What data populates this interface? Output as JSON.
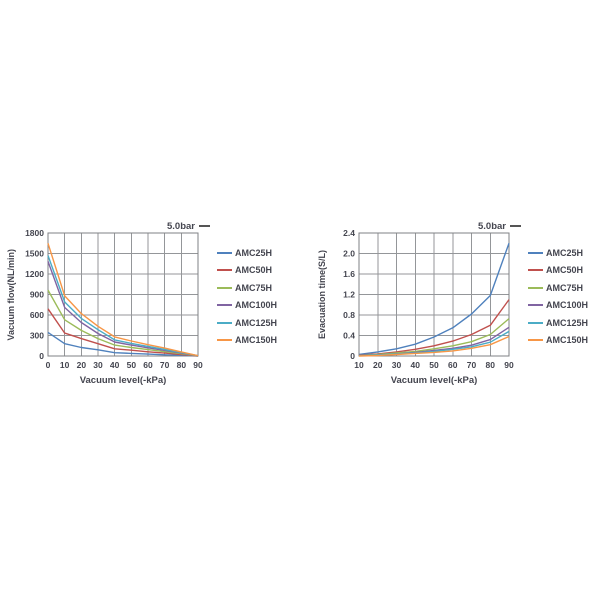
{
  "page": {
    "background": "#ffffff"
  },
  "theme": {
    "text_color": "#44454f",
    "grid_color": "#949699",
    "axis_color": "#7f8184",
    "title_dash_color": "#2b2b2b"
  },
  "chart_data": [
    {
      "type": "line",
      "title": "5.0bar",
      "xlabel": "Vacuum level(-kPa)",
      "ylabel": "Vacuum flow(NL/min)",
      "xlim": [
        0,
        90
      ],
      "ylim": [
        0,
        1800
      ],
      "grid": true,
      "legend_position": "right",
      "xticks": [
        0,
        10,
        20,
        30,
        40,
        50,
        60,
        70,
        80,
        90
      ],
      "yticks": [
        0,
        300,
        600,
        900,
        1200,
        1500,
        1800
      ],
      "xtick_labels": [
        "0",
        "10",
        "20",
        "30",
        "40",
        "50",
        "60",
        "70",
        "80",
        "90"
      ],
      "ytick_labels": [
        "0",
        "300",
        "600",
        "900",
        "1200",
        "1500",
        "1800"
      ],
      "x": [
        0,
        10,
        20,
        30,
        40,
        50,
        60,
        70,
        80,
        90
      ],
      "series": [
        {
          "name": "AMC25H",
          "color": "#4F81BD",
          "values": [
            345,
            180,
            125,
            90,
            48,
            38,
            28,
            18,
            10,
            0
          ]
        },
        {
          "name": "AMC50H",
          "color": "#C0504D",
          "values": [
            690,
            335,
            255,
            180,
            105,
            85,
            62,
            42,
            22,
            0
          ]
        },
        {
          "name": "AMC75H",
          "color": "#9BBB59",
          "values": [
            965,
            530,
            375,
            255,
            160,
            125,
            93,
            63,
            33,
            2
          ]
        },
        {
          "name": "AMC100H",
          "color": "#8064A2",
          "values": [
            1385,
            710,
            490,
            330,
            205,
            160,
            120,
            82,
            43,
            3
          ]
        },
        {
          "name": "AMC125H",
          "color": "#4BACC6",
          "values": [
            1470,
            790,
            550,
            385,
            235,
            185,
            140,
            95,
            50,
            4
          ]
        },
        {
          "name": "AMC150H",
          "color": "#F79646",
          "values": [
            1650,
            880,
            620,
            435,
            280,
            220,
            165,
            115,
            60,
            5
          ]
        }
      ]
    },
    {
      "type": "line",
      "title": "5.0bar",
      "xlabel": "Vacuum level(-kPa)",
      "ylabel": "Evacuation time(S/L)",
      "xlim": [
        10,
        90
      ],
      "ylim": [
        0,
        2.4
      ],
      "grid": true,
      "legend_position": "right",
      "xticks": [
        10,
        20,
        30,
        40,
        50,
        60,
        70,
        80,
        90
      ],
      "yticks": [
        0,
        0.4,
        0.8,
        1.2,
        1.6,
        2.0,
        2.4
      ],
      "xtick_labels": [
        "10",
        "20",
        "30",
        "40",
        "50",
        "60",
        "70",
        "80",
        "90"
      ],
      "ytick_labels": [
        "0",
        "0.4",
        "0.8",
        "1.2",
        "1.6",
        "2.0",
        "2.4"
      ],
      "x": [
        10,
        20,
        30,
        40,
        50,
        60,
        70,
        80,
        90
      ],
      "series": [
        {
          "name": "AMC25H",
          "color": "#4F81BD",
          "values": [
            0.03,
            0.08,
            0.14,
            0.23,
            0.37,
            0.55,
            0.82,
            1.18,
            2.2
          ]
        },
        {
          "name": "AMC50H",
          "color": "#C0504D",
          "values": [
            0.02,
            0.04,
            0.08,
            0.13,
            0.2,
            0.29,
            0.42,
            0.6,
            1.1
          ]
        },
        {
          "name": "AMC75H",
          "color": "#9BBB59",
          "values": [
            0.01,
            0.03,
            0.06,
            0.09,
            0.14,
            0.2,
            0.28,
            0.42,
            0.73
          ]
        },
        {
          "name": "AMC100H",
          "color": "#8064A2",
          "values": [
            0.01,
            0.02,
            0.04,
            0.07,
            0.11,
            0.15,
            0.21,
            0.32,
            0.56
          ]
        },
        {
          "name": "AMC125H",
          "color": "#4BACC6",
          "values": [
            0.01,
            0.02,
            0.04,
            0.06,
            0.09,
            0.13,
            0.18,
            0.27,
            0.48
          ]
        },
        {
          "name": "AMC150H",
          "color": "#F79646",
          "values": [
            0.0,
            0.01,
            0.03,
            0.05,
            0.07,
            0.1,
            0.15,
            0.22,
            0.38
          ]
        }
      ]
    }
  ]
}
